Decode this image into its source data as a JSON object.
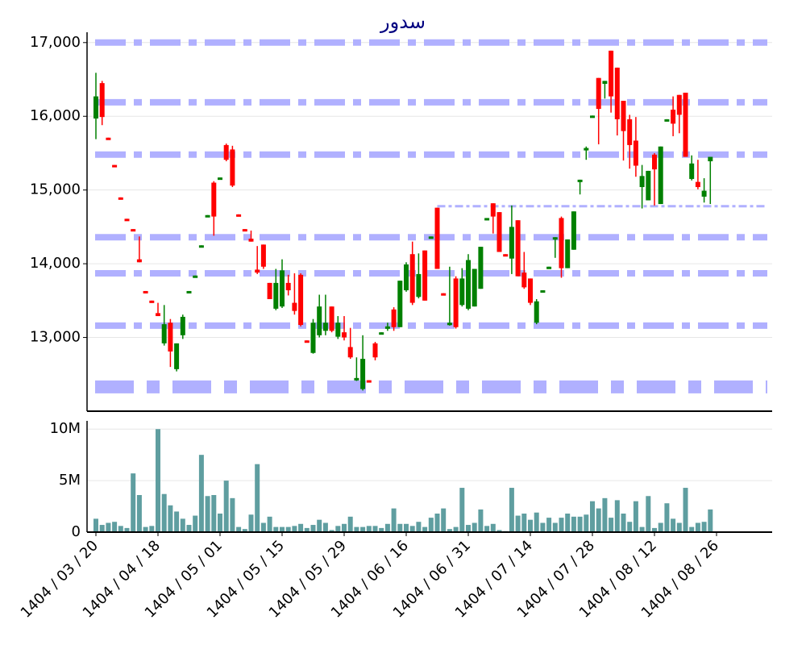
{
  "chart_data": {
    "type": "candlestick",
    "title": "سدور",
    "categories": [
      "1404 / 03 / 20",
      null,
      null,
      null,
      null,
      null,
      null,
      null,
      null,
      null,
      "1404 / 04 / 18",
      null,
      null,
      null,
      null,
      null,
      null,
      null,
      null,
      null,
      "1404 / 05 / 01",
      null,
      null,
      null,
      null,
      null,
      null,
      null,
      null,
      null,
      "1404 / 05 / 15",
      null,
      null,
      null,
      null,
      null,
      null,
      null,
      null,
      null,
      "1404 / 05 / 29",
      null,
      null,
      null,
      null,
      null,
      null,
      null,
      null,
      null,
      "1404 / 06 / 16",
      null,
      null,
      null,
      null,
      null,
      null,
      null,
      null,
      null,
      "1404 / 06 / 31",
      null,
      null,
      null,
      null,
      null,
      null,
      null,
      null,
      null,
      "1404 / 07 / 14",
      null,
      null,
      null,
      null,
      null,
      null,
      null,
      null,
      null,
      "1404 / 07 / 28",
      null,
      null,
      null,
      null,
      null,
      null,
      null,
      null,
      null,
      "1404 / 08 / 12",
      null,
      null,
      null,
      null,
      null,
      null,
      null,
      null,
      null,
      "1404 / 08 / 26"
    ],
    "open": [
      15970,
      16450,
      15710,
      15340,
      14900,
      14610,
      14470,
      14060,
      13630,
      13500,
      13330,
      12920,
      13200,
      12570,
      13030,
      13600,
      13820,
      14220,
      14630,
      15100,
      15140,
      15610,
      15550,
      14670,
      14470,
      14340,
      13920,
      14260,
      13740,
      13390,
      13420,
      13740,
      13470,
      13850,
      12960,
      12790,
      13030,
      13090,
      13420,
      13010,
      13070,
      12870,
      12430,
      12300,
      12420,
      12920,
      13050,
      13130,
      13380,
      13140,
      13640,
      14130,
      13550,
      14180,
      14340,
      14760,
      13600,
      13180,
      13800,
      13440,
      13390,
      13420,
      13660,
      14590,
      14820,
      14700,
      14130,
      14070,
      14590,
      13880,
      13800,
      13200,
      13610,
      13940,
      14330,
      14620,
      13940,
      14190,
      15110,
      15540,
      15990,
      16520,
      16440,
      16890,
      16660,
      16210,
      15960,
      15670,
      15040,
      14860,
      15480,
      14810,
      15930,
      16090,
      16290,
      16320,
      15150,
      15110,
      14910,
      15390,
      null
    ],
    "high": [
      16590,
      16480,
      15710,
      15340,
      14900,
      14610,
      14470,
      14370,
      13630,
      13500,
      13470,
      13440,
      13250,
      12920,
      13310,
      13630,
      13840,
      14250,
      14660,
      15120,
      15170,
      15630,
      15600,
      14670,
      14470,
      14450,
      14240,
      14260,
      13740,
      13930,
      14060,
      13850,
      13870,
      13870,
      12960,
      13250,
      13580,
      13580,
      13420,
      13290,
      13290,
      13130,
      12730,
      13030,
      12420,
      12940,
      13070,
      13200,
      13410,
      13770,
      14020,
      14300,
      14140,
      14180,
      14370,
      14760,
      13600,
      13960,
      13830,
      13940,
      14130,
      13930,
      14230,
      14620,
      14820,
      14700,
      14130,
      14790,
      14590,
      14160,
      13800,
      13520,
      13640,
      13960,
      14360,
      14640,
      14330,
      14710,
      15140,
      15590,
      16010,
      16520,
      16480,
      16890,
      16660,
      16210,
      16020,
      15990,
      15340,
      15260,
      15500,
      15590,
      15960,
      16270,
      16290,
      16320,
      15470,
      15410,
      15160,
      15450,
      null
    ],
    "low": [
      15690,
      15880,
      15680,
      15310,
      14870,
      14590,
      14450,
      14020,
      13600,
      13470,
      13290,
      12890,
      12600,
      12540,
      12980,
      13600,
      13820,
      14220,
      14630,
      14380,
      15140,
      15390,
      15040,
      14650,
      14450,
      14300,
      13860,
      13930,
      13520,
      13370,
      13400,
      13570,
      13310,
      13150,
      12940,
      12780,
      13000,
      13030,
      13070,
      12980,
      12960,
      12710,
      12410,
      12280,
      12410,
      12690,
      13050,
      13090,
      13090,
      13140,
      13620,
      13440,
      13530,
      13500,
      14340,
      13930,
      13590,
      13160,
      13120,
      13420,
      13370,
      13420,
      13660,
      14590,
      14410,
      14160,
      14110,
      13860,
      13830,
      13660,
      13440,
      13180,
      13610,
      13940,
      14080,
      13810,
      13940,
      14190,
      14940,
      15410,
      15990,
      15620,
      16240,
      16050,
      15740,
      15400,
      15290,
      15180,
      14750,
      14860,
      14790,
      14810,
      15930,
      15730,
      15770,
      15450,
      15130,
      15010,
      14830,
      14810,
      null
    ],
    "close": [
      16270,
      15990,
      15680,
      15310,
      14870,
      14590,
      14450,
      14020,
      13600,
      13470,
      13290,
      13180,
      12810,
      12920,
      13280,
      13630,
      13840,
      14250,
      14660,
      14640,
      15170,
      15410,
      15060,
      14650,
      14450,
      14300,
      13880,
      13960,
      13520,
      13740,
      13910,
      13640,
      13360,
      13170,
      12940,
      13200,
      13420,
      13200,
      13090,
      13200,
      13000,
      12730,
      12450,
      12710,
      12410,
      12730,
      13070,
      13150,
      13140,
      13770,
      13990,
      13470,
      13860,
      13500,
      14370,
      13930,
      13590,
      13200,
      13140,
      13800,
      14050,
      13930,
      14230,
      14620,
      14640,
      14160,
      14110,
      14500,
      13830,
      13680,
      13470,
      13490,
      13640,
      13960,
      14360,
      13940,
      14330,
      14710,
      15140,
      15570,
      16010,
      16100,
      16480,
      16270,
      15960,
      15800,
      15610,
      15330,
      15190,
      15260,
      15280,
      15590,
      15960,
      15900,
      16020,
      15450,
      15360,
      15040,
      14990,
      15450,
      null
    ],
    "volume": [
      1300000,
      700000,
      900000,
      1000000,
      600000,
      400000,
      5700000,
      3600000,
      500000,
      600000,
      10000000,
      3700000,
      2600000,
      2000000,
      1300000,
      700000,
      1600000,
      7500000,
      3500000,
      3600000,
      1800000,
      5000000,
      3300000,
      500000,
      300000,
      1700000,
      6600000,
      900000,
      1500000,
      500000,
      500000,
      500000,
      600000,
      800000,
      400000,
      700000,
      1200000,
      900000,
      200000,
      600000,
      800000,
      1500000,
      500000,
      500000,
      600000,
      600000,
      400000,
      800000,
      2300000,
      800000,
      800000,
      600000,
      1000000,
      500000,
      1400000,
      1800000,
      2300000,
      300000,
      500000,
      4300000,
      700000,
      900000,
      2200000,
      600000,
      800000,
      200000,
      100000,
      4300000,
      1600000,
      1800000,
      1200000,
      1900000,
      900000,
      1400000,
      900000,
      1400000,
      1800000,
      1500000,
      1500000,
      1700000,
      3000000,
      2300000,
      3300000,
      1400000,
      3100000,
      1800000,
      1000000,
      3000000,
      500000,
      3500000,
      400000,
      900000,
      2800000,
      1300000,
      900000,
      4300000,
      500000,
      900000,
      1000000,
      2200000,
      null
    ],
    "up_color": "#008000",
    "down_color": "#ff0000",
    "volume_color": "#5f9ea0",
    "level_color": "#b0b0ff",
    "levels": [
      17000,
      16190,
      15480,
      14360,
      13870,
      13160
    ],
    "base_level": 12330,
    "short_level": {
      "value": 14780,
      "from": 55
    },
    "ylim": [
      12000,
      17140
    ],
    "yticks": [
      {
        "value": 13000,
        "label": "13,000"
      },
      {
        "value": 14000,
        "label": "14,000"
      },
      {
        "value": 15000,
        "label": "15,000"
      },
      {
        "value": 16000,
        "label": "16,000"
      },
      {
        "value": 17000,
        "label": "17,000"
      }
    ],
    "volume_ylim": [
      0,
      10800000
    ],
    "volume_yticks": [
      0,
      {
        "value": 5000000,
        "label": "5M"
      },
      {
        "value": 10000000,
        "label": "10M"
      }
    ],
    "grid": true
  }
}
